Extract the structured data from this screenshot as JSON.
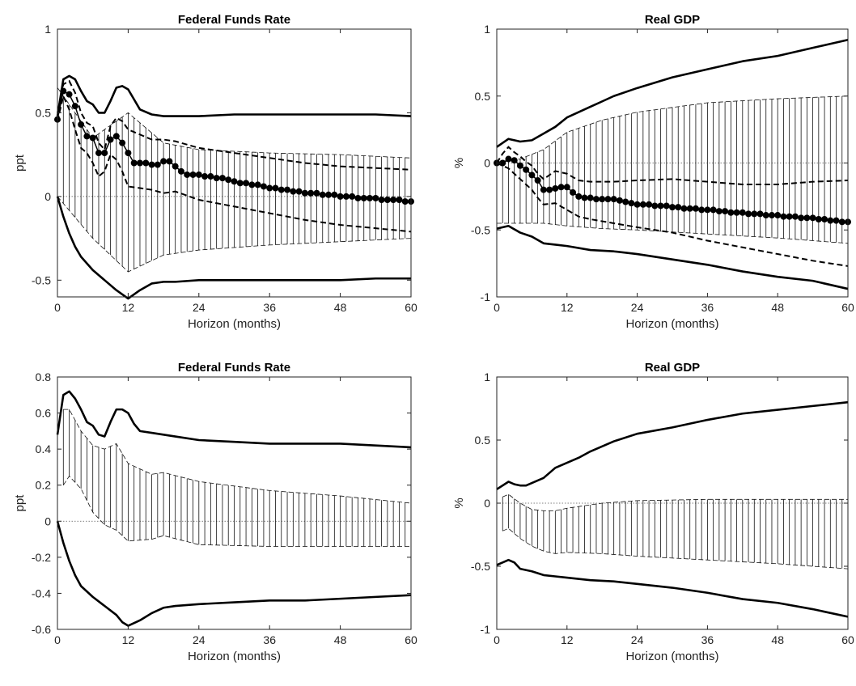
{
  "chart_data": [
    {
      "type": "line",
      "title": "Federal Funds Rate",
      "xlabel": "Horizon (months)",
      "ylabel": "ppt",
      "xlim": [
        0,
        60
      ],
      "ylim": [
        -0.6,
        1
      ],
      "xticks": [
        0,
        12,
        24,
        36,
        48,
        60
      ],
      "yticks": [
        -0.5,
        0,
        0.5,
        1
      ],
      "ytick_labels": [
        "-0.5",
        "0",
        "0.5",
        "1"
      ],
      "band": {
        "style": "vertical-hatch",
        "x": [
          0,
          6,
          12,
          18,
          24,
          36,
          48,
          60
        ],
        "upper": [
          0.65,
          0.35,
          0.5,
          0.32,
          0.28,
          0.26,
          0.25,
          0.23
        ],
        "lower": [
          0.0,
          -0.25,
          -0.45,
          -0.35,
          -0.32,
          -0.29,
          -0.27,
          -0.25
        ]
      },
      "series": [
        {
          "style": "solid-thick",
          "x": [
            0,
            1,
            2,
            3,
            4,
            5,
            6,
            7,
            8,
            9,
            10,
            11,
            12,
            13,
            14,
            16,
            18,
            20,
            24,
            30,
            36,
            42,
            48,
            54,
            60
          ],
          "y": [
            0.48,
            0.7,
            0.72,
            0.7,
            0.63,
            0.57,
            0.55,
            0.5,
            0.5,
            0.57,
            0.65,
            0.66,
            0.64,
            0.58,
            0.52,
            0.49,
            0.48,
            0.48,
            0.48,
            0.49,
            0.49,
            0.49,
            0.49,
            0.49,
            0.48
          ]
        },
        {
          "style": "solid-thick",
          "x": [
            0,
            1,
            2,
            3,
            4,
            6,
            8,
            10,
            12,
            14,
            16,
            18,
            20,
            24,
            30,
            36,
            42,
            48,
            54,
            60
          ],
          "y": [
            0.0,
            -0.12,
            -0.22,
            -0.3,
            -0.36,
            -0.44,
            -0.5,
            -0.56,
            -0.61,
            -0.56,
            -0.52,
            -0.51,
            -0.51,
            -0.5,
            -0.5,
            -0.5,
            -0.5,
            -0.5,
            -0.49,
            -0.49
          ]
        },
        {
          "style": "dashed",
          "x": [
            0,
            1,
            2,
            3,
            4,
            5,
            6,
            7,
            8,
            9,
            10,
            11,
            12,
            14,
            16,
            18,
            20,
            24,
            30,
            36,
            42,
            48,
            54,
            60
          ],
          "y": [
            0.5,
            0.67,
            0.69,
            0.62,
            0.5,
            0.44,
            0.42,
            0.32,
            0.28,
            0.42,
            0.47,
            0.45,
            0.4,
            0.37,
            0.34,
            0.34,
            0.33,
            0.29,
            0.26,
            0.23,
            0.2,
            0.18,
            0.17,
            0.16
          ]
        },
        {
          "style": "dashed",
          "x": [
            0,
            1,
            2,
            3,
            4,
            5,
            6,
            7,
            8,
            9,
            10,
            11,
            12,
            14,
            16,
            18,
            20,
            24,
            30,
            36,
            42,
            48,
            54,
            60
          ],
          "y": [
            0.45,
            0.6,
            0.52,
            0.4,
            0.29,
            0.26,
            0.2,
            0.12,
            0.15,
            0.25,
            0.22,
            0.15,
            0.06,
            0.05,
            0.04,
            0.02,
            0.03,
            -0.02,
            -0.06,
            -0.1,
            -0.14,
            -0.17,
            -0.19,
            -0.21
          ]
        },
        {
          "style": "dotted-markers",
          "x": [
            0,
            1,
            2,
            3,
            4,
            5,
            6,
            7,
            8,
            9,
            10,
            11,
            12,
            13,
            14,
            15,
            16,
            17,
            18,
            19,
            20,
            21,
            22,
            23,
            24,
            25,
            26,
            27,
            28,
            29,
            30,
            31,
            32,
            33,
            34,
            35,
            36,
            37,
            38,
            39,
            40,
            41,
            42,
            43,
            44,
            45,
            46,
            47,
            48,
            49,
            50,
            51,
            52,
            53,
            54,
            55,
            56,
            57,
            58,
            59,
            60
          ],
          "y": [
            0.46,
            0.63,
            0.61,
            0.54,
            0.43,
            0.36,
            0.35,
            0.26,
            0.26,
            0.34,
            0.36,
            0.32,
            0.26,
            0.2,
            0.2,
            0.2,
            0.19,
            0.19,
            0.21,
            0.21,
            0.18,
            0.15,
            0.13,
            0.13,
            0.13,
            0.12,
            0.12,
            0.11,
            0.11,
            0.1,
            0.09,
            0.08,
            0.08,
            0.07,
            0.07,
            0.06,
            0.05,
            0.05,
            0.04,
            0.04,
            0.03,
            0.03,
            0.02,
            0.02,
            0.02,
            0.01,
            0.01,
            0.01,
            0.0,
            0.0,
            0.0,
            -0.01,
            -0.01,
            -0.01,
            -0.01,
            -0.02,
            -0.02,
            -0.02,
            -0.02,
            -0.03,
            -0.03
          ]
        }
      ]
    },
    {
      "type": "line",
      "title": "Real GDP",
      "xlabel": "Horizon (months)",
      "ylabel": "%",
      "xlim": [
        0,
        60
      ],
      "ylim": [
        -1,
        1
      ],
      "xticks": [
        0,
        12,
        24,
        36,
        48,
        60
      ],
      "yticks": [
        -1,
        -0.5,
        0,
        0.5,
        1
      ],
      "ytick_labels": [
        "-1",
        "-0.5",
        "0",
        "0.5",
        "1"
      ],
      "band": {
        "style": "vertical-hatch",
        "x": [
          0,
          4,
          8,
          12,
          18,
          24,
          36,
          48,
          60
        ],
        "upper": [
          0.0,
          0.03,
          0.1,
          0.23,
          0.32,
          0.38,
          0.45,
          0.48,
          0.5
        ],
        "lower": [
          -0.45,
          -0.45,
          -0.45,
          -0.47,
          -0.49,
          -0.5,
          -0.53,
          -0.56,
          -0.6
        ]
      },
      "series": [
        {
          "style": "solid-thick",
          "x": [
            0,
            2,
            4,
            6,
            8,
            10,
            12,
            14,
            16,
            18,
            20,
            24,
            30,
            36,
            42,
            48,
            54,
            60
          ],
          "y": [
            0.12,
            0.18,
            0.16,
            0.17,
            0.22,
            0.27,
            0.34,
            0.38,
            0.42,
            0.46,
            0.5,
            0.56,
            0.64,
            0.7,
            0.76,
            0.8,
            0.86,
            0.92
          ]
        },
        {
          "style": "solid-thick",
          "x": [
            0,
            2,
            4,
            6,
            8,
            10,
            12,
            16,
            20,
            24,
            30,
            36,
            42,
            48,
            54,
            60
          ],
          "y": [
            -0.49,
            -0.47,
            -0.52,
            -0.55,
            -0.6,
            -0.61,
            -0.62,
            -0.65,
            -0.66,
            -0.68,
            -0.72,
            -0.76,
            -0.81,
            -0.85,
            -0.88,
            -0.94
          ]
        },
        {
          "style": "dashed",
          "x": [
            0,
            1,
            2,
            3,
            4,
            5,
            6,
            7,
            8,
            10,
            12,
            14,
            16,
            20,
            24,
            30,
            36,
            42,
            48,
            54,
            60
          ],
          "y": [
            0.0,
            0.07,
            0.12,
            0.08,
            0.05,
            0.01,
            -0.02,
            -0.08,
            -0.12,
            -0.06,
            -0.08,
            -0.13,
            -0.14,
            -0.14,
            -0.13,
            -0.12,
            -0.14,
            -0.16,
            -0.16,
            -0.14,
            -0.13
          ]
        },
        {
          "style": "dashed",
          "x": [
            0,
            1,
            2,
            3,
            4,
            5,
            6,
            7,
            8,
            10,
            12,
            14,
            16,
            20,
            24,
            30,
            36,
            42,
            48,
            54,
            60
          ],
          "y": [
            0.0,
            -0.02,
            -0.04,
            -0.08,
            -0.12,
            -0.16,
            -0.2,
            -0.26,
            -0.31,
            -0.3,
            -0.35,
            -0.4,
            -0.42,
            -0.45,
            -0.48,
            -0.52,
            -0.58,
            -0.63,
            -0.68,
            -0.73,
            -0.77
          ]
        },
        {
          "style": "dotted-markers",
          "x": [
            0,
            1,
            2,
            3,
            4,
            5,
            6,
            7,
            8,
            9,
            10,
            11,
            12,
            13,
            14,
            15,
            16,
            17,
            18,
            19,
            20,
            21,
            22,
            23,
            24,
            25,
            26,
            27,
            28,
            29,
            30,
            31,
            32,
            33,
            34,
            35,
            36,
            37,
            38,
            39,
            40,
            41,
            42,
            43,
            44,
            45,
            46,
            47,
            48,
            49,
            50,
            51,
            52,
            53,
            54,
            55,
            56,
            57,
            58,
            59,
            60
          ],
          "y": [
            0.0,
            0.0,
            0.03,
            0.02,
            -0.02,
            -0.05,
            -0.09,
            -0.13,
            -0.2,
            -0.2,
            -0.19,
            -0.18,
            -0.18,
            -0.22,
            -0.25,
            -0.26,
            -0.26,
            -0.27,
            -0.27,
            -0.27,
            -0.27,
            -0.28,
            -0.29,
            -0.3,
            -0.31,
            -0.31,
            -0.31,
            -0.32,
            -0.32,
            -0.32,
            -0.33,
            -0.33,
            -0.34,
            -0.34,
            -0.34,
            -0.35,
            -0.35,
            -0.35,
            -0.36,
            -0.36,
            -0.37,
            -0.37,
            -0.37,
            -0.38,
            -0.38,
            -0.38,
            -0.39,
            -0.39,
            -0.39,
            -0.4,
            -0.4,
            -0.4,
            -0.41,
            -0.41,
            -0.41,
            -0.42,
            -0.42,
            -0.43,
            -0.43,
            -0.44,
            -0.44
          ]
        }
      ]
    },
    {
      "type": "line",
      "title": "Federal Funds Rate",
      "xlabel": "Horizon (months)",
      "ylabel": "ppt",
      "xlim": [
        0,
        60
      ],
      "ylim": [
        -0.6,
        0.8
      ],
      "xticks": [
        0,
        12,
        24,
        36,
        48,
        60
      ],
      "yticks": [
        -0.6,
        -0.4,
        -0.2,
        0,
        0.2,
        0.4,
        0.6,
        0.8
      ],
      "ytick_labels": [
        "-0.6",
        "-0.4",
        "-0.2",
        "0",
        "0.2",
        "0.4",
        "0.6",
        "0.8"
      ],
      "band": {
        "style": "vertical-hatch",
        "x": [
          1,
          2,
          4,
          6,
          8,
          10,
          12,
          16,
          18,
          24,
          36,
          48,
          60
        ],
        "upper": [
          0.62,
          0.62,
          0.5,
          0.42,
          0.4,
          0.43,
          0.32,
          0.26,
          0.27,
          0.22,
          0.17,
          0.14,
          0.1
        ],
        "lower": [
          0.2,
          0.25,
          0.18,
          0.05,
          -0.02,
          -0.05,
          -0.11,
          -0.1,
          -0.08,
          -0.13,
          -0.14,
          -0.14,
          -0.14
        ]
      },
      "series": [
        {
          "style": "solid-thick",
          "x": [
            0,
            1,
            2,
            3,
            4,
            5,
            6,
            7,
            8,
            9,
            10,
            11,
            12,
            13,
            14,
            16,
            18,
            20,
            24,
            30,
            36,
            42,
            48,
            54,
            60
          ],
          "y": [
            0.48,
            0.7,
            0.72,
            0.68,
            0.62,
            0.55,
            0.53,
            0.48,
            0.47,
            0.55,
            0.62,
            0.62,
            0.6,
            0.54,
            0.5,
            0.49,
            0.48,
            0.47,
            0.45,
            0.44,
            0.43,
            0.43,
            0.43,
            0.42,
            0.41
          ]
        },
        {
          "style": "solid-thick",
          "x": [
            0,
            1,
            2,
            3,
            4,
            6,
            8,
            10,
            11,
            12,
            14,
            16,
            18,
            20,
            24,
            30,
            36,
            42,
            48,
            54,
            60
          ],
          "y": [
            0.0,
            -0.12,
            -0.22,
            -0.3,
            -0.36,
            -0.42,
            -0.47,
            -0.52,
            -0.56,
            -0.58,
            -0.55,
            -0.51,
            -0.48,
            -0.47,
            -0.46,
            -0.45,
            -0.44,
            -0.44,
            -0.43,
            -0.42,
            -0.41
          ]
        }
      ]
    },
    {
      "type": "line",
      "title": "Real GDP",
      "xlabel": "Horizon (months)",
      "ylabel": "%",
      "xlim": [
        0,
        60
      ],
      "ylim": [
        -1,
        1
      ],
      "xticks": [
        0,
        12,
        24,
        36,
        48,
        60
      ],
      "yticks": [
        -1,
        -0.5,
        0,
        0.5,
        1
      ],
      "ytick_labels": [
        "-1",
        "-0.5",
        "0",
        "0.5",
        "1"
      ],
      "band": {
        "style": "vertical-hatch",
        "x": [
          1,
          2,
          4,
          6,
          8,
          10,
          12,
          18,
          24,
          36,
          48,
          60
        ],
        "upper": [
          0.05,
          0.07,
          0.0,
          -0.05,
          -0.06,
          -0.06,
          -0.04,
          0.0,
          0.02,
          0.03,
          0.03,
          0.03
        ],
        "lower": [
          -0.22,
          -0.2,
          -0.28,
          -0.34,
          -0.38,
          -0.4,
          -0.39,
          -0.4,
          -0.42,
          -0.45,
          -0.48,
          -0.52
        ]
      },
      "series": [
        {
          "style": "solid-thick",
          "x": [
            0,
            2,
            3,
            4,
            5,
            6,
            8,
            10,
            12,
            14,
            16,
            18,
            20,
            24,
            30,
            36,
            42,
            48,
            54,
            60
          ],
          "y": [
            0.11,
            0.17,
            0.15,
            0.14,
            0.14,
            0.16,
            0.2,
            0.28,
            0.32,
            0.36,
            0.41,
            0.45,
            0.49,
            0.55,
            0.6,
            0.66,
            0.71,
            0.74,
            0.77,
            0.8
          ]
        },
        {
          "style": "solid-thick",
          "x": [
            0,
            1,
            2,
            3,
            4,
            6,
            8,
            10,
            12,
            16,
            20,
            24,
            30,
            36,
            42,
            48,
            54,
            60
          ],
          "y": [
            -0.49,
            -0.47,
            -0.45,
            -0.47,
            -0.52,
            -0.54,
            -0.57,
            -0.58,
            -0.59,
            -0.61,
            -0.62,
            -0.64,
            -0.67,
            -0.71,
            -0.76,
            -0.79,
            -0.84,
            -0.9
          ]
        }
      ]
    }
  ]
}
